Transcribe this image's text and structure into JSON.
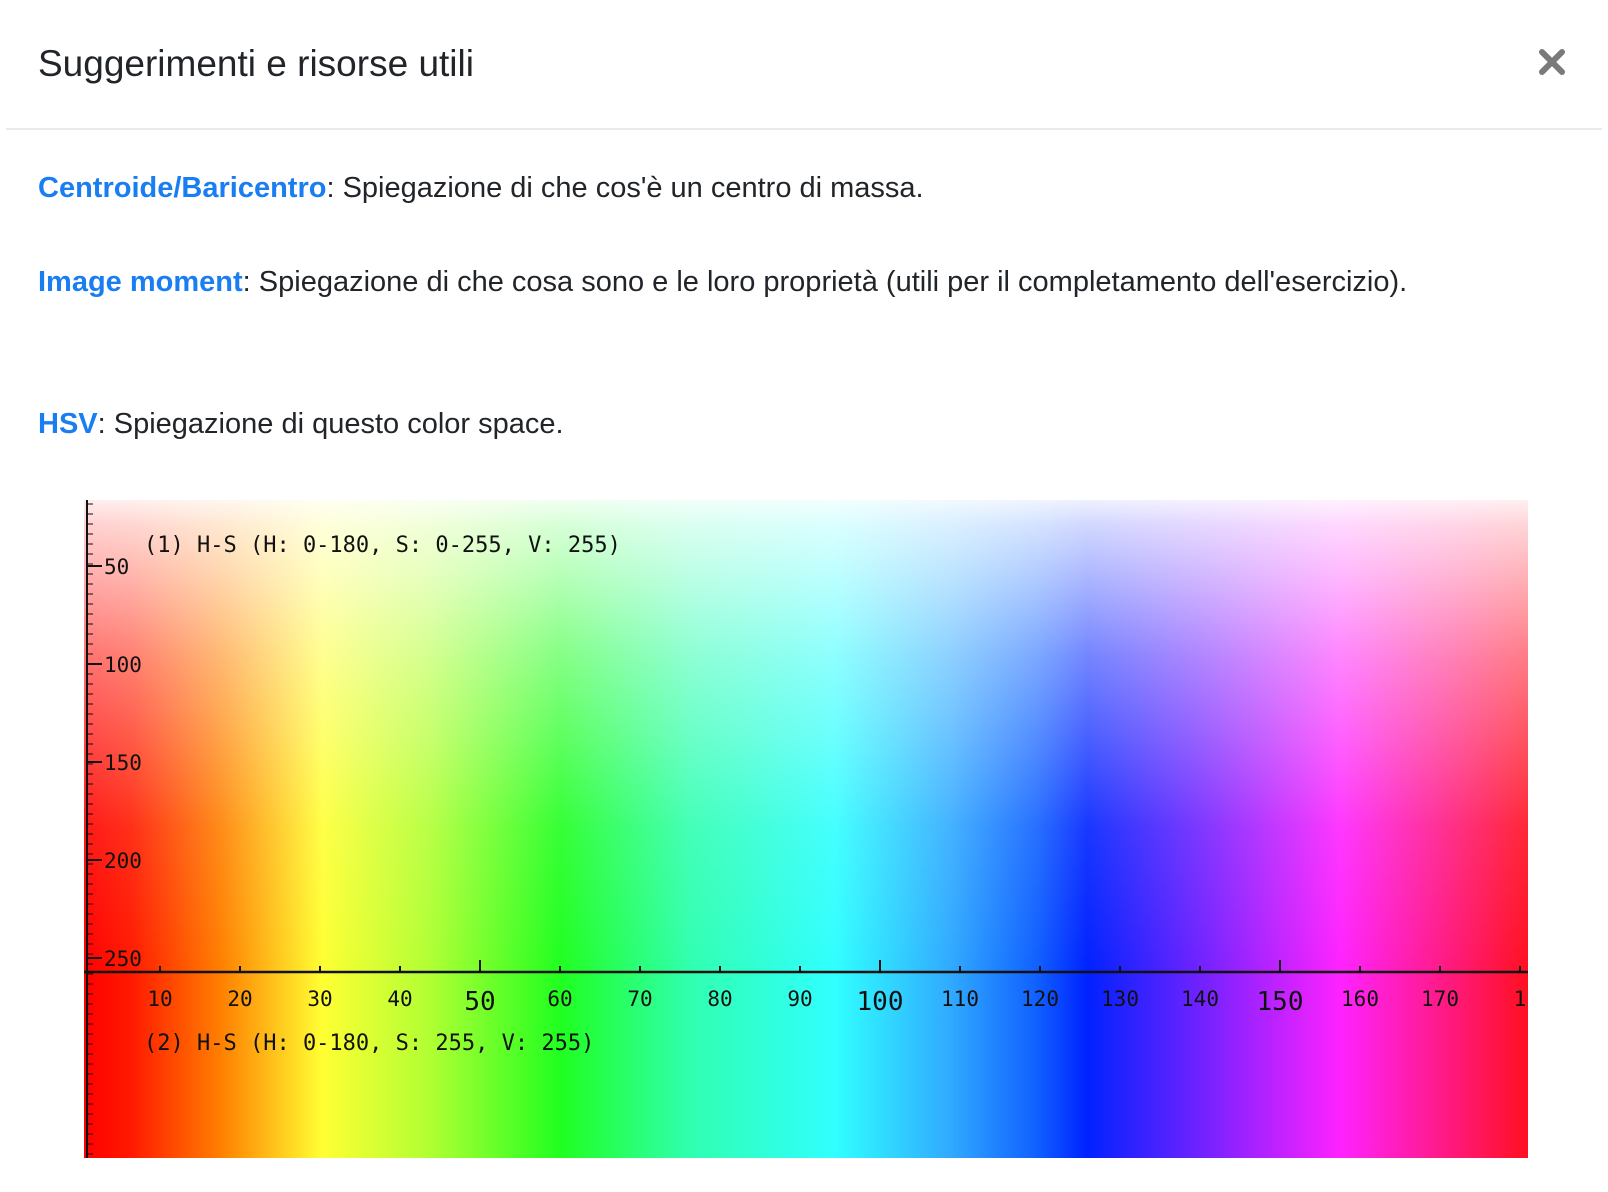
{
  "modal": {
    "title": "Suggerimenti e risorse utili",
    "close_icon": "close-icon"
  },
  "resources": [
    {
      "link": "Centroide/Baricentro",
      "text": ": Spiegazione di che cos'è un centro di massa."
    },
    {
      "link": "Image moment",
      "text": ": Spiegazione di che cosa sono e le loro proprietà (utili per il completamento dell'esercizio)."
    },
    {
      "link": "HSV",
      "text": ": Spiegazione di questo color space."
    }
  ],
  "figure": {
    "label_top": "(1) H-S (H: 0-180, S: 0-255, V: 255)",
    "label_bottom": "(2) H-S (H: 0-180, S: 255, V: 255)",
    "y_ticks": [
      "50",
      "100",
      "150",
      "200",
      "250"
    ],
    "x_ticks": [
      "10",
      "20",
      "30",
      "40",
      "50",
      "60",
      "70",
      "80",
      "90",
      "100",
      "110",
      "120",
      "130",
      "140",
      "150",
      "160",
      "170",
      "1"
    ],
    "colors": {
      "link": "#1a7ef2"
    }
  }
}
